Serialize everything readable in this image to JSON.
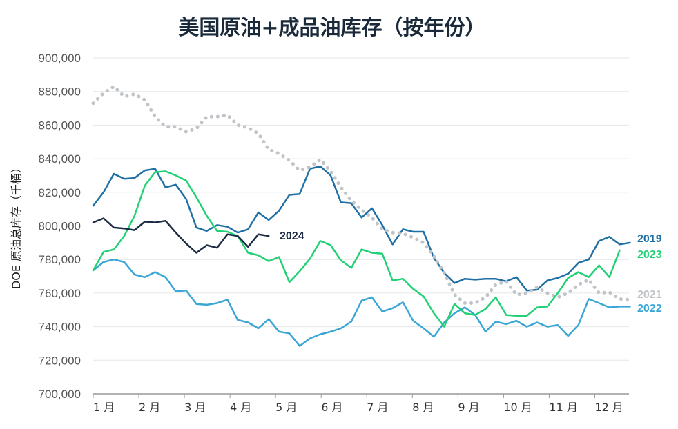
{
  "chart_data": {
    "type": "line",
    "title": "美国原油+成品油库存（按年份）",
    "ylabel": "DOE 原油总库存（千桶）",
    "ylim": [
      700000,
      900000
    ],
    "yticks": [
      "700,000",
      "720,000",
      "740,000",
      "760,000",
      "780,000",
      "800,000",
      "820,000",
      "840,000",
      "860,000",
      "880,000",
      "900,000"
    ],
    "ytick_values": [
      700000,
      720000,
      740000,
      760000,
      780000,
      800000,
      820000,
      840000,
      860000,
      880000,
      900000
    ],
    "xticks": [
      "1 月",
      "2 月",
      "3 月",
      "4 月",
      "5 月",
      "6 月",
      "7 月",
      "8 月",
      "9 月",
      "10 月",
      "11 月",
      "12 月"
    ],
    "xlim": [
      1,
      12.75
    ],
    "series": [
      {
        "name": "2019",
        "color": "#1f6fa5",
        "style": "solid",
        "values": [
          812000,
          820000,
          831000,
          828000,
          828500,
          833000,
          834000,
          823000,
          824500,
          816000,
          799000,
          797000,
          800500,
          799500,
          796000,
          798000,
          808000,
          803500,
          809000,
          818500,
          819000,
          834000,
          835500,
          830000,
          814000,
          813500,
          805000,
          810500,
          800500,
          789000,
          798000,
          796500,
          796500,
          781000,
          772000,
          766000,
          768500,
          768000,
          768500,
          768500,
          767000,
          769500,
          761500,
          762000,
          767500,
          769000,
          771500,
          778000,
          780000,
          791000,
          793500,
          789000,
          790000
        ]
      },
      {
        "name": "2021",
        "color": "#c0c4c8",
        "style": "dotted",
        "values": [
          873000,
          879000,
          883000,
          877000,
          878500,
          875000,
          865000,
          859000,
          859000,
          856000,
          858000,
          865000,
          865000,
          866000,
          860000,
          858500,
          855000,
          845500,
          843000,
          839000,
          833000,
          835000,
          839500,
          832500,
          823000,
          815000,
          809500,
          805000,
          798000,
          796000,
          795500,
          793000,
          790000,
          782000,
          772000,
          759000,
          754000,
          754000,
          757500,
          765000,
          767000,
          759000,
          760000,
          763500,
          760000,
          757500,
          760000,
          765000,
          768000,
          760000,
          760500,
          756500,
          756000
        ]
      },
      {
        "name": "2022",
        "color": "#3aa6d6",
        "style": "solid",
        "values": [
          773500,
          778500,
          780000,
          778500,
          771000,
          769500,
          772500,
          769500,
          761000,
          761500,
          753500,
          753000,
          754000,
          756000,
          744000,
          742500,
          739000,
          744500,
          737000,
          736000,
          728500,
          733000,
          735500,
          737000,
          739000,
          743000,
          755500,
          757500,
          749000,
          751000,
          754500,
          743500,
          739000,
          734000,
          742500,
          748000,
          751500,
          747000,
          737000,
          743000,
          741500,
          743500,
          740000,
          742500,
          740000,
          741000,
          734500,
          741000,
          756500,
          754000,
          751500,
          752000,
          752000
        ]
      },
      {
        "name": "2023",
        "color": "#22d175",
        "style": "solid",
        "values": [
          773500,
          784500,
          786000,
          794000,
          806000,
          824000,
          832000,
          832500,
          830000,
          827000,
          817000,
          806000,
          797000,
          796500,
          794000,
          784000,
          782500,
          779000,
          781500,
          766500,
          773000,
          780500,
          791000,
          788500,
          779500,
          775000,
          786000,
          784000,
          783500,
          767500,
          768500,
          762500,
          758000,
          748000,
          740000,
          753500,
          748000,
          747000,
          750500,
          757500,
          747000,
          746500,
          746500,
          751500,
          752000,
          760000,
          769000,
          772500,
          769500,
          776500,
          769500,
          785500
        ]
      },
      {
        "name": "2024",
        "color": "#1c2b44",
        "style": "solid",
        "values": [
          802000,
          804500,
          799000,
          798500,
          797500,
          802500,
          802000,
          803000,
          796000,
          789500,
          784000,
          788500,
          787000,
          795000,
          794000,
          787500,
          795000,
          794000
        ]
      }
    ]
  }
}
